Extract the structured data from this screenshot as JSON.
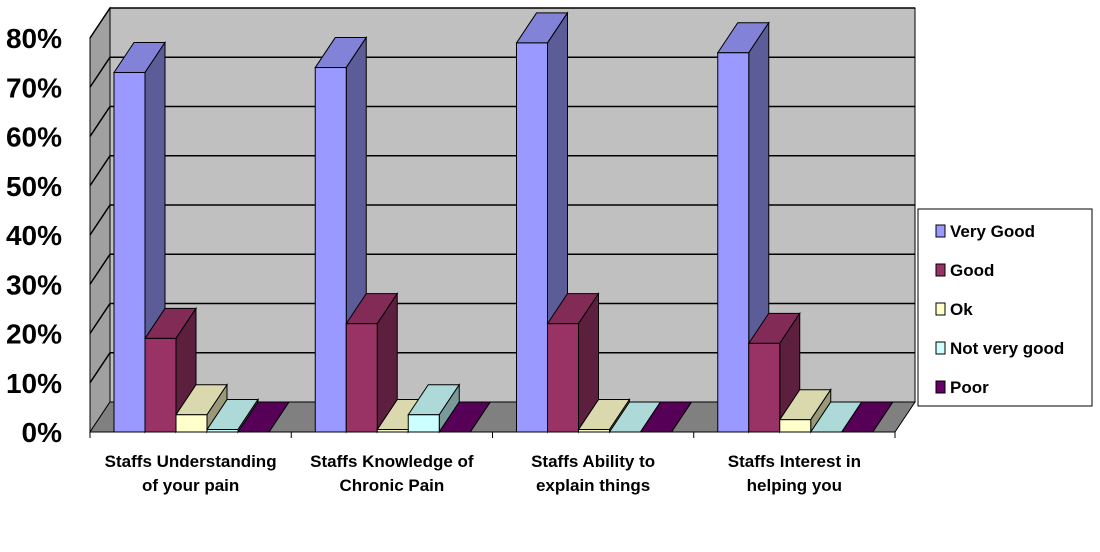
{
  "chart_data": {
    "type": "bar",
    "categories": [
      [
        "Staffs Understanding",
        "of your pain"
      ],
      [
        "Staffs Knowledge of",
        "Chronic Pain"
      ],
      [
        "Staffs Ability to",
        "explain things"
      ],
      [
        "Staffs Interest in",
        "helping you"
      ]
    ],
    "series": [
      {
        "name": "Very Good",
        "color": "#9999FF",
        "values": [
          73,
          74,
          79,
          77
        ]
      },
      {
        "name": "Good",
        "color": "#993366",
        "values": [
          19,
          22,
          22,
          18
        ]
      },
      {
        "name": "Ok",
        "color": "#FFFFCC",
        "values": [
          3.5,
          0.5,
          0.5,
          2.5
        ]
      },
      {
        "name": "Not very good",
        "color": "#CCFFFF",
        "values": [
          0.5,
          3.5,
          0,
          0
        ]
      },
      {
        "name": "Poor",
        "color": "#660066",
        "values": [
          0,
          0,
          0,
          0
        ]
      }
    ],
    "ylim": [
      0,
      80
    ],
    "yticks": [
      "0%",
      "10%",
      "20%",
      "30%",
      "40%",
      "50%",
      "60%",
      "70%",
      "80%"
    ],
    "grid": true,
    "legend_position": "right",
    "wall_color": "#C0C0C0"
  }
}
